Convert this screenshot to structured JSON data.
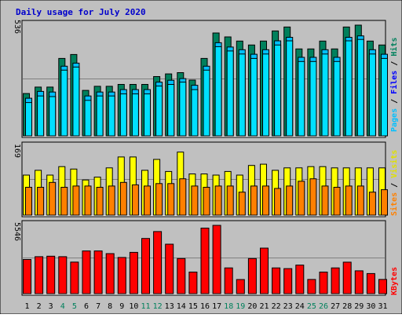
{
  "colors": {
    "background": "#c0c0c0",
    "hits": "#00805c",
    "files": "#00c0ff",
    "pages": "#00e0ff",
    "visits": "#ffff00",
    "sites": "#ff8000",
    "kbytes": "#ff0000",
    "title": "#0000cc",
    "weekend_label": "#00805c",
    "weekday_label": "#000000"
  },
  "chart_data": {
    "type": "bar",
    "title": "Daily usage for July 2020",
    "categories": [
      "1",
      "2",
      "3",
      "4",
      "5",
      "6",
      "7",
      "8",
      "9",
      "10",
      "11",
      "12",
      "13",
      "14",
      "15",
      "16",
      "17",
      "18",
      "19",
      "20",
      "21",
      "22",
      "23",
      "24",
      "25",
      "26",
      "27",
      "28",
      "29",
      "30",
      "31"
    ],
    "weekend_days": [
      "4",
      "5",
      "11",
      "12",
      "18",
      "19",
      "25",
      "26"
    ],
    "panels": [
      {
        "name": "hits-files-pages",
        "ymax_label": "536",
        "ylim": [
          0,
          536
        ],
        "side_labels": [
          "Pages",
          "Files",
          "Hits"
        ],
        "series": [
          {
            "name": "Hits",
            "values": [
              205,
              236,
              236,
              375,
              394,
              220,
              240,
              240,
              249,
              249,
              249,
              287,
              300,
              306,
              270,
              375,
              498,
              479,
              459,
              440,
              459,
              508,
              527,
              421,
              421,
              459,
              421,
              527,
              536,
              459,
              440
            ]
          },
          {
            "name": "Files",
            "values": [
              182,
              215,
              212,
              337,
              352,
              193,
              212,
              212,
              224,
              224,
              224,
              260,
              269,
              277,
              245,
              337,
              451,
              430,
              417,
              395,
              417,
              460,
              477,
              380,
              380,
              417,
              380,
              477,
              484,
              417,
              395
            ]
          },
          {
            "name": "Pages",
            "values": [
              161,
              193,
              190,
              318,
              333,
              172,
              193,
              193,
              203,
              203,
              203,
              241,
              249,
              260,
              224,
              318,
              432,
              411,
              396,
              375,
              396,
              440,
              460,
              360,
              360,
              396,
              360,
              460,
              467,
              396,
              375
            ]
          }
        ]
      },
      {
        "name": "visits-sites",
        "ymax_label": "169",
        "ylim": [
          0,
          169
        ],
        "side_labels": [
          "Sites",
          "Visits"
        ],
        "series": [
          {
            "name": "Visits",
            "values": [
              99,
              111,
              99,
              120,
              114,
              87,
              94,
              117,
              144,
              144,
              111,
              138,
              108,
              156,
              102,
              102,
              99,
              108,
              99,
              123,
              126,
              111,
              117,
              117,
              120,
              120,
              117,
              117,
              117,
              117,
              117
            ]
          },
          {
            "name": "Sites",
            "values": [
              69,
              69,
              81,
              69,
              72,
              72,
              69,
              72,
              81,
              75,
              72,
              78,
              78,
              90,
              72,
              69,
              72,
              72,
              57,
              72,
              72,
              66,
              72,
              84,
              90,
              72,
              69,
              72,
              72,
              57,
              63
            ]
          }
        ]
      },
      {
        "name": "kbytes",
        "ymax_label": "5546",
        "ylim": [
          0,
          5546
        ],
        "side_labels": [
          "KBytes"
        ],
        "series": [
          {
            "name": "KBytes",
            "values": [
              2773,
              3003,
              3038,
              3003,
              2561,
              3470,
              3470,
              3249,
              2938,
              3352,
              4479,
              5043,
              4018,
              2851,
              1751,
              5323,
              5546,
              2088,
              1147,
              2848,
              3698,
              2088,
              2035,
              2320,
              1157,
              1751,
              2088,
              2556,
              1856,
              1634,
              1157
            ]
          }
        ]
      }
    ]
  }
}
